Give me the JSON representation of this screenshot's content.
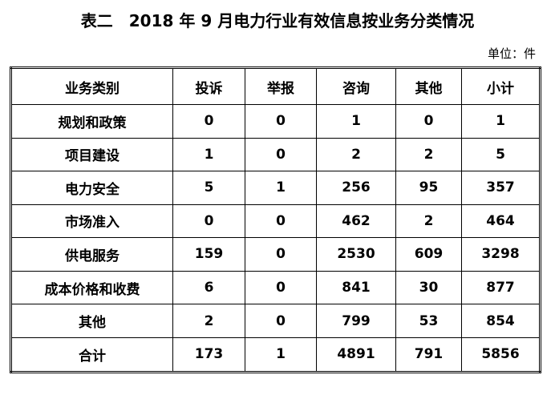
{
  "title": "表二　2018 年 9 月电力行业有效信息按业务分类情况",
  "unit": "单位：件",
  "table": {
    "header": [
      "业务类别",
      "投诉",
      "举报",
      "咨询",
      "其他",
      "小计"
    ],
    "rows": [
      [
        "规划和政策",
        0,
        0,
        1,
        0,
        1
      ],
      [
        "项目建设",
        1,
        0,
        2,
        2,
        5
      ],
      [
        "电力安全",
        5,
        1,
        256,
        95,
        357
      ],
      [
        "市场准入",
        0,
        0,
        462,
        2,
        464
      ],
      [
        "供电服务",
        159,
        0,
        2530,
        609,
        3298
      ],
      [
        "成本价格和收费",
        6,
        0,
        841,
        30,
        877
      ],
      [
        "其他",
        2,
        0,
        799,
        53,
        854
      ],
      [
        "合计",
        173,
        1,
        4891,
        791,
        5856
      ]
    ]
  }
}
